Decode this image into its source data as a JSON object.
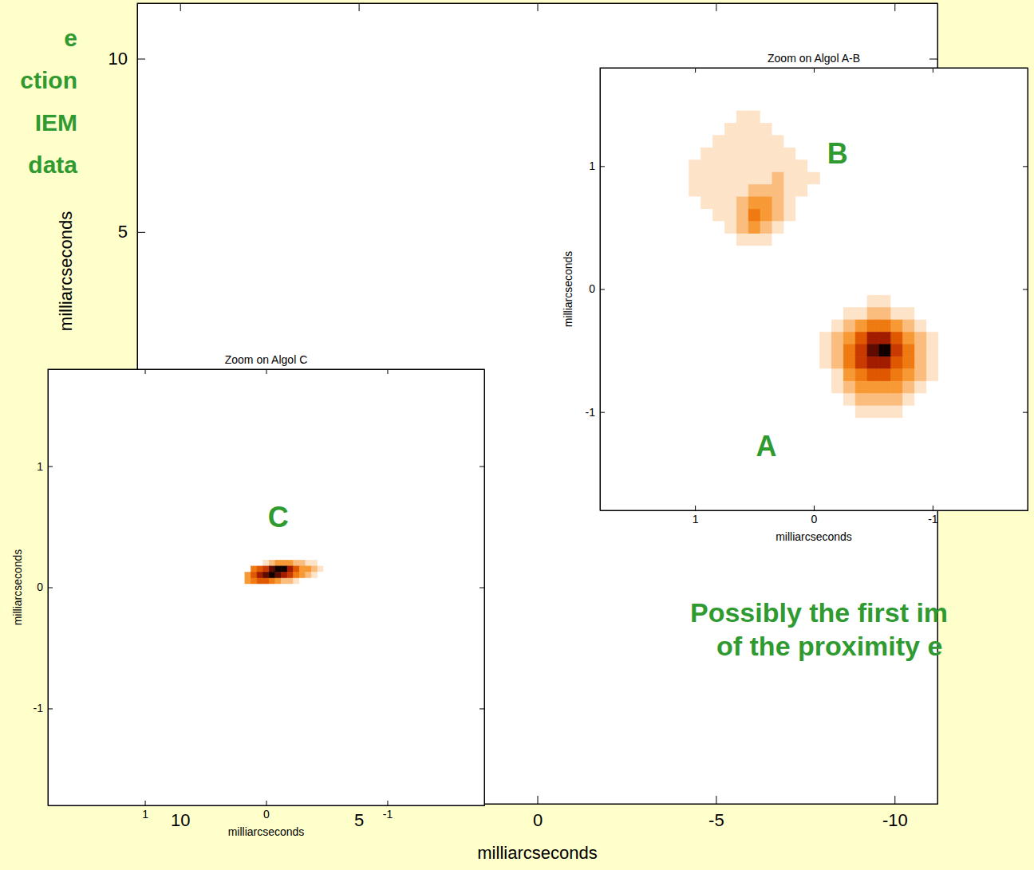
{
  "chart_data": [
    {
      "type": "heatmap",
      "xlabel": "milliarcseconds",
      "ylabel": "milliarcseconds",
      "xlim": [
        11.2,
        -11.2
      ],
      "ylim": [
        -11.5,
        11.6
      ],
      "xticks": [
        10,
        5,
        0,
        -5,
        -10
      ],
      "yticks": [
        10,
        5
      ],
      "annotations": [
        [
          "e",
          "ction",
          "IEM",
          "data"
        ],
        [
          "Possibly the first im",
          "of the proximity e"
        ]
      ]
    },
    {
      "type": "heatmap",
      "title": "Zoom on Algol A-B",
      "xlabel": "milliarcseconds",
      "ylabel": "milliarcseconds",
      "xlim": [
        1.8,
        -1.8
      ],
      "ylim": [
        -1.8,
        1.8
      ],
      "xticks": [
        1,
        0,
        -1
      ],
      "yticks": [
        1,
        0,
        -1
      ],
      "zlim": [
        0,
        9
      ],
      "labels": [
        {
          "text": "B",
          "x": -0.2,
          "y": 1.1
        },
        {
          "text": "A",
          "x": 0.4,
          "y": -1.28
        }
      ],
      "images": [
        {
          "x": [
            0,
            -0.1,
            -0.2,
            -0.3,
            -0.4,
            -0.5,
            -0.6,
            -0.7,
            -0.8,
            -0.9,
            -1.0,
            -1.1
          ],
          "y": [
            0,
            -0.1,
            -0.2,
            -0.3,
            -0.4,
            -0.5,
            -0.6,
            -0.7,
            -0.8,
            -0.9,
            -1.0,
            -1.1
          ],
          "z": [
            [
              0,
              0,
              0,
              0,
              0,
              0,
              0,
              0,
              0,
              0,
              0,
              0
            ],
            [
              0,
              0,
              0,
              0,
              0,
              1,
              1,
              0,
              0,
              0,
              0,
              0
            ],
            [
              0,
              0,
              0,
              1,
              1,
              2,
              2,
              1,
              1,
              0,
              0,
              0
            ],
            [
              0,
              0,
              1,
              2,
              3,
              4,
              4,
              3,
              2,
              1,
              0,
              0
            ],
            [
              0,
              1,
              2,
              3,
              5,
              7,
              7,
              5,
              3,
              2,
              1,
              0
            ],
            [
              0,
              1,
              2,
              4,
              6,
              8,
              9,
              6,
              4,
              2,
              1,
              0
            ],
            [
              0,
              1,
              2,
              4,
              6,
              7,
              7,
              5,
              4,
              2,
              1,
              0
            ],
            [
              0,
              0,
              1,
              3,
              4,
              5,
              5,
              4,
              3,
              2,
              1,
              0
            ],
            [
              0,
              0,
              1,
              2,
              3,
              3,
              3,
              3,
              2,
              1,
              0,
              0
            ],
            [
              0,
              0,
              0,
              1,
              2,
              2,
              2,
              2,
              1,
              0,
              0,
              0
            ],
            [
              0,
              0,
              0,
              0,
              1,
              1,
              1,
              1,
              0,
              0,
              0,
              0
            ],
            [
              0,
              0,
              0,
              0,
              0,
              0,
              0,
              0,
              0,
              0,
              0,
              0
            ]
          ]
        },
        {
          "x": [
            1.1,
            1.0,
            0.9,
            0.8,
            0.7,
            0.6,
            0.5,
            0.4,
            0.3,
            0.2,
            0.1,
            0
          ],
          "y": [
            1.5,
            1.4,
            1.3,
            1.2,
            1.1,
            1.0,
            0.9,
            0.8,
            0.7,
            0.6,
            0.5,
            0.4,
            0.3
          ],
          "z": [
            [
              0,
              0,
              0,
              0,
              0,
              0,
              0,
              0,
              0,
              0,
              0,
              0
            ],
            [
              0,
              0,
              0,
              0,
              0,
              1,
              1,
              0,
              0,
              0,
              0,
              0
            ],
            [
              0,
              0,
              0,
              0,
              1,
              1,
              1,
              1,
              0,
              0,
              0,
              0
            ],
            [
              0,
              0,
              0,
              1,
              1,
              1,
              1,
              1,
              1,
              0,
              0,
              0
            ],
            [
              0,
              0,
              1,
              1,
              1,
              1,
              1,
              1,
              1,
              1,
              0,
              0
            ],
            [
              0,
              1,
              1,
              1,
              1,
              1,
              1,
              1,
              1,
              1,
              1,
              0
            ],
            [
              0,
              1,
              1,
              1,
              1,
              1,
              1,
              1,
              2,
              1,
              1,
              1
            ],
            [
              0,
              1,
              1,
              1,
              1,
              1,
              2,
              2,
              2,
              1,
              1,
              0
            ],
            [
              0,
              0,
              1,
              1,
              1,
              2,
              3,
              3,
              2,
              1,
              0,
              0
            ],
            [
              0,
              0,
              0,
              1,
              1,
              2,
              4,
              3,
              2,
              1,
              0,
              0
            ],
            [
              0,
              0,
              0,
              0,
              1,
              2,
              3,
              2,
              1,
              0,
              0,
              0
            ],
            [
              0,
              0,
              0,
              0,
              0,
              1,
              1,
              1,
              0,
              0,
              0,
              0
            ],
            [
              0,
              0,
              0,
              0,
              0,
              0,
              0,
              0,
              0,
              0,
              0,
              0
            ]
          ]
        }
      ]
    },
    {
      "type": "heatmap",
      "title": "Zoom on Algol C",
      "xlabel": "milliarcseconds",
      "ylabel": "milliarcseconds",
      "xlim": [
        1.8,
        -1.8
      ],
      "ylim": [
        -1.8,
        1.8
      ],
      "xticks": [
        1,
        0,
        -1
      ],
      "yticks": [
        1,
        0,
        -1
      ],
      "zlim": [
        0,
        9
      ],
      "labels": [
        {
          "text": "C",
          "x": -0.1,
          "y": 0.58
        }
      ],
      "images": [
        {
          "x": [
            0.2,
            0.15,
            0.1,
            0.05,
            0,
            -0.05,
            -0.1,
            -0.15,
            -0.2,
            -0.25,
            -0.3,
            -0.35,
            -0.4,
            -0.45,
            -0.5
          ],
          "y": [
            0.25,
            0.2,
            0.15,
            0.1,
            0.05,
            0
          ],
          "z": [
            [
              0,
              0,
              0,
              0,
              0,
              0,
              0,
              0,
              0,
              0,
              0,
              0,
              0,
              0,
              0
            ],
            [
              0,
              0,
              0,
              0,
              1,
              2,
              3,
              3,
              3,
              2,
              2,
              1,
              1,
              0,
              0
            ],
            [
              0,
              0,
              4,
              5,
              6,
              8,
              9,
              9,
              7,
              5,
              3,
              3,
              2,
              1,
              0
            ],
            [
              0,
              3,
              5,
              7,
              8,
              9,
              8,
              7,
              6,
              4,
              3,
              2,
              1,
              0,
              0
            ],
            [
              0,
              3,
              4,
              5,
              5,
              4,
              3,
              2,
              2,
              1,
              0,
              0,
              0,
              0,
              0
            ],
            [
              0,
              0,
              0,
              0,
              0,
              0,
              0,
              0,
              0,
              0,
              0,
              0,
              0,
              0,
              0
            ]
          ]
        }
      ]
    }
  ]
}
